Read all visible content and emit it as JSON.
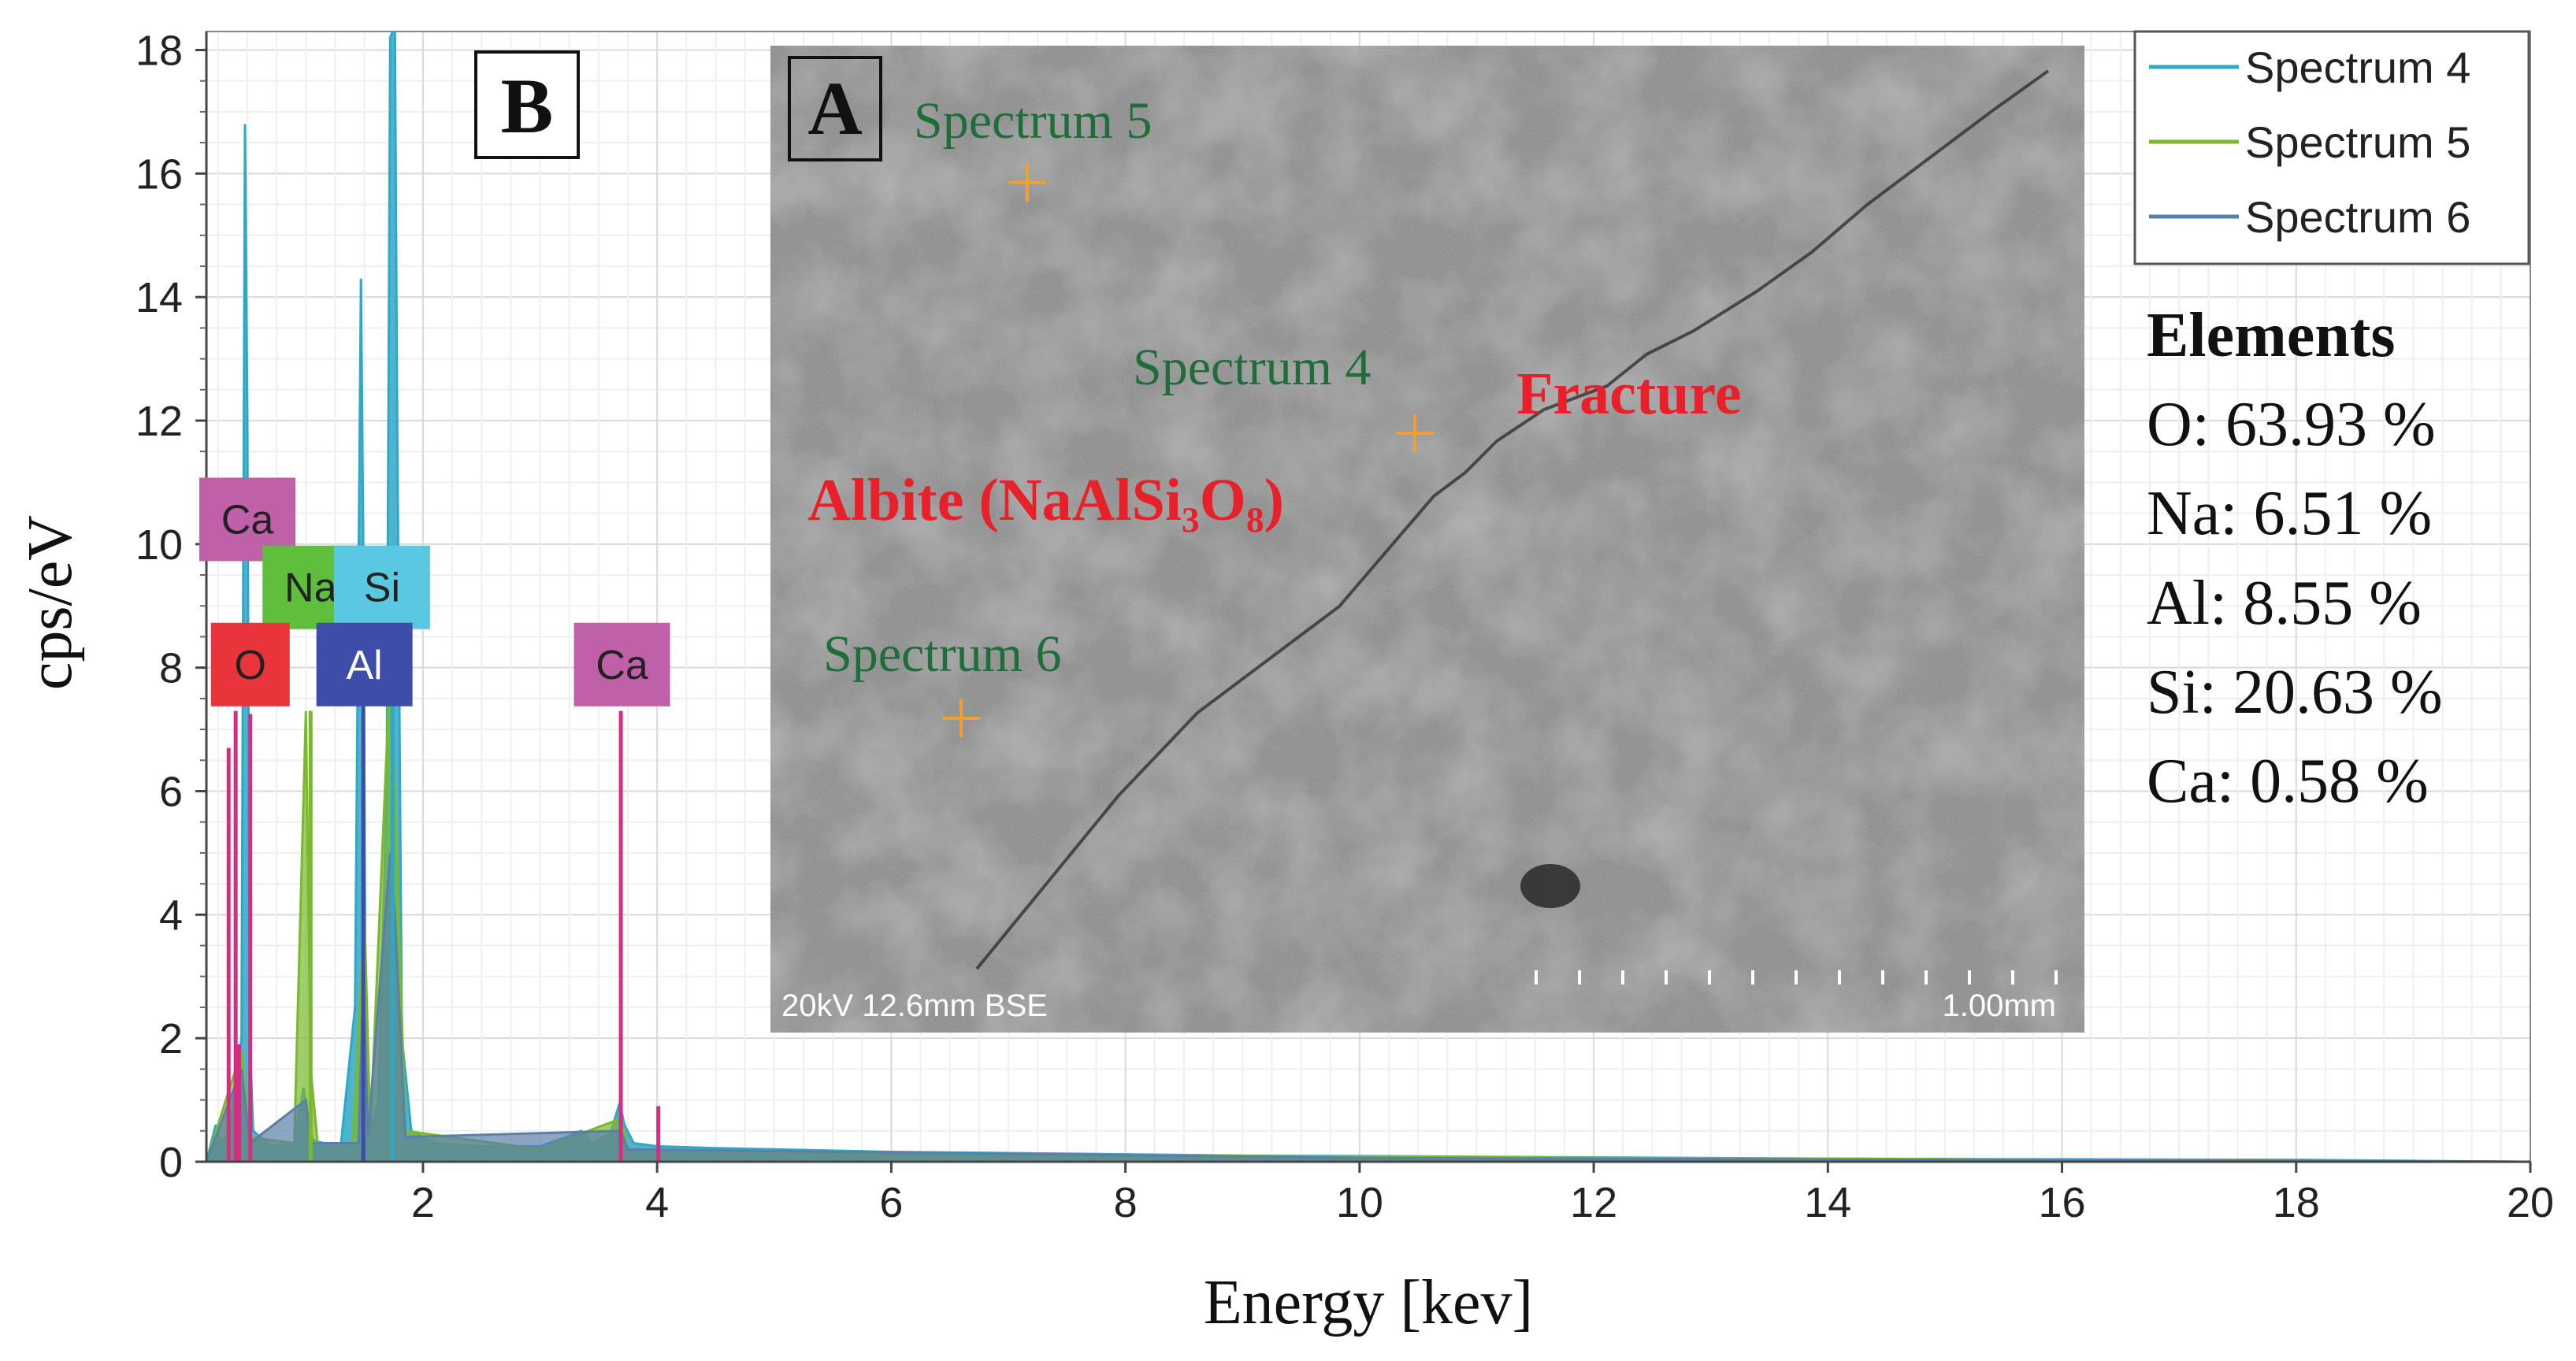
{
  "chart_data": {
    "type": "line",
    "title": "",
    "panel_letter": "B",
    "xlabel": "Energy [kev]",
    "ylabel": "cps/eV",
    "xlim": [
      0.15,
      20
    ],
    "ylim": [
      0,
      18.3
    ],
    "xticks": [
      "2",
      "4",
      "6",
      "8",
      "10",
      "12",
      "14",
      "16",
      "18",
      "20"
    ],
    "yticks": [
      "0",
      "2",
      "4",
      "6",
      "8",
      "10",
      "12",
      "14",
      "16",
      "18"
    ],
    "series": [
      {
        "name": "Spectrum 4",
        "color": "#2fa8c8",
        "x": [
          0.15,
          0.23,
          0.27,
          0.35,
          0.45,
          0.48,
          0.5,
          0.52,
          0.55,
          0.7,
          0.9,
          0.98,
          1.02,
          1.06,
          1.15,
          1.3,
          1.42,
          1.47,
          1.49,
          1.51,
          1.55,
          1.62,
          1.69,
          1.72,
          1.74,
          1.76,
          1.78,
          1.82,
          1.9,
          2.1,
          2.5,
          3.0,
          3.3,
          3.35,
          3.45,
          3.6,
          3.68,
          3.72,
          3.8,
          4.0,
          4.5,
          5.0,
          6.0,
          7.0,
          8.0,
          9.0,
          10.0,
          12.0,
          14.0,
          16.0,
          18.0,
          19.9
        ],
        "y": [
          0.0,
          0.6,
          0.3,
          0.5,
          2.0,
          16.8,
          12.0,
          2.0,
          0.5,
          0.25,
          0.3,
          1.2,
          0.6,
          0.35,
          0.3,
          0.3,
          2.5,
          14.3,
          10.0,
          2.0,
          0.4,
          1.0,
          6.0,
          18.2,
          18.3,
          18.3,
          12.0,
          2.0,
          0.5,
          0.3,
          0.25,
          0.25,
          0.45,
          0.5,
          0.3,
          0.45,
          0.95,
          0.6,
          0.3,
          0.25,
          0.22,
          0.2,
          0.16,
          0.14,
          0.12,
          0.1,
          0.09,
          0.07,
          0.05,
          0.04,
          0.03,
          0.0
        ]
      },
      {
        "name": "Spectrum 5",
        "color": "#7ab82e",
        "x": [
          0.15,
          0.45,
          0.52,
          0.9,
          1.0,
          1.04,
          1.1,
          1.4,
          1.5,
          1.55,
          1.72,
          1.76,
          1.85,
          3.0,
          3.69,
          3.75,
          5.0,
          10.0,
          19.9
        ],
        "y": [
          0.0,
          1.8,
          0.4,
          0.3,
          7.3,
          1.5,
          0.3,
          0.3,
          4.0,
          0.5,
          8.0,
          6.0,
          0.5,
          0.2,
          0.7,
          0.2,
          0.15,
          0.08,
          0.0
        ]
      },
      {
        "name": "Spectrum 6",
        "color": "#5a7fa8",
        "x": [
          0.15,
          0.45,
          0.52,
          1.0,
          1.04,
          1.45,
          1.49,
          1.53,
          1.72,
          1.76,
          1.85,
          3.69,
          3.75,
          10.0,
          19.9
        ],
        "y": [
          0.0,
          1.5,
          0.3,
          1.0,
          0.3,
          0.3,
          3.0,
          0.4,
          5.0,
          4.0,
          0.4,
          0.5,
          0.2,
          0.06,
          0.0
        ]
      }
    ],
    "element_lines": [
      {
        "name": "O",
        "x": 0.525,
        "y": 7.25,
        "color": "#d62d82"
      },
      {
        "name": "Ca",
        "x": 0.34,
        "y": 6.7,
        "color": "#d62d82"
      },
      {
        "name": "Ca",
        "x": 0.4,
        "y": 7.3,
        "color": "#d62d82"
      },
      {
        "name": "Ca",
        "x": 0.43,
        "y": 1.9,
        "color": "#d62d82"
      },
      {
        "name": "Na",
        "x": 1.04,
        "y": 7.3,
        "color": "#7ab82e"
      },
      {
        "name": "Al",
        "x": 1.49,
        "y": 8.0,
        "color": "#3d4da8"
      },
      {
        "name": "Si",
        "x": 1.74,
        "y": 9.0,
        "color": "#2fa8c8"
      },
      {
        "name": "Ca",
        "x": 3.69,
        "y": 7.3,
        "color": "#d62d82"
      },
      {
        "name": "Ca",
        "x": 4.01,
        "y": 0.9,
        "color": "#d62d82"
      }
    ],
    "element_labels": [
      {
        "text": "Ca",
        "fill": "#c060a8",
        "text_color": "#222222",
        "x": 0.5,
        "y": 10.4
      },
      {
        "text": "Na",
        "fill": "#5fbf3c",
        "text_color": "#222222",
        "x": 1.04,
        "y": 9.3
      },
      {
        "text": "Si",
        "fill": "#5ac8e0",
        "text_color": "#222222",
        "x": 1.65,
        "y": 9.3
      },
      {
        "text": "O",
        "fill": "#e8343a",
        "text_color": "#222222",
        "x": 0.525,
        "y": 8.05
      },
      {
        "text": "Al",
        "fill": "#3d4da8",
        "text_color": "#ffffff",
        "x": 1.5,
        "y": 8.05
      },
      {
        "text": "Ca",
        "fill": "#c060a8",
        "text_color": "#222222",
        "x": 3.7,
        "y": 8.05
      }
    ],
    "legend": {
      "placement": "top-right",
      "entries": [
        "Spectrum 4",
        "Spectrum 5",
        "Spectrum 6"
      ]
    },
    "elements_box": {
      "title": "Elements",
      "lines": [
        "O: 63.93 %",
        "Na: 6.51 %",
        "Al: 8.55 %",
        "Si: 20.63 %",
        "Ca: 0.58 %"
      ]
    }
  },
  "inset_image": {
    "panel_letter": "A",
    "spectrum_labels": [
      "Spectrum 5",
      "Spectrum 4",
      "Spectrum 6"
    ],
    "label_albite": "Albite (NaAlSi₃O₈)",
    "label_fracture": "Fracture",
    "caption_left": "20kV 12.6mm BSE",
    "caption_right": "1.00mm",
    "label_green": "#1f6e3a",
    "label_red": "#e8202a",
    "marker_orange": "#f0a030"
  }
}
